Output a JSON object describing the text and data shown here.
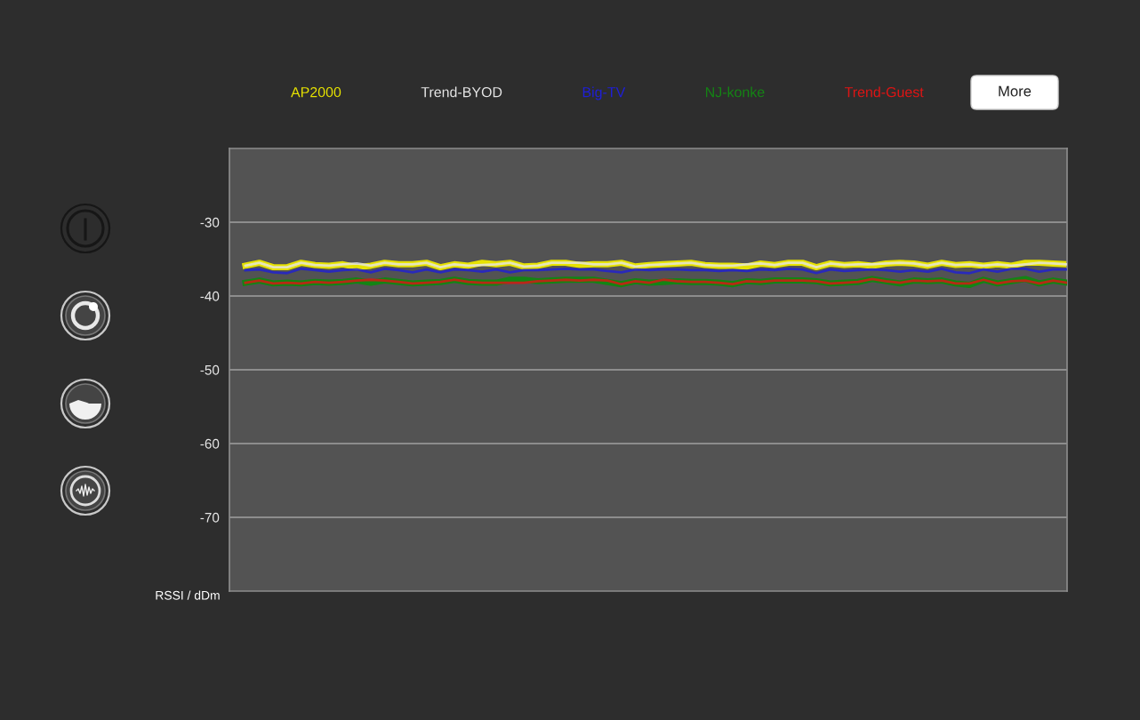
{
  "chart_data": {
    "type": "line",
    "categories": [
      null,
      null,
      null,
      null,
      null,
      null,
      null,
      null,
      null,
      null,
      null,
      null,
      null,
      null,
      null,
      null,
      null,
      null,
      null,
      null,
      null,
      null,
      null,
      null,
      null,
      null,
      null,
      null,
      null,
      null,
      null,
      null,
      null,
      null,
      null,
      null,
      null,
      null,
      null,
      null,
      null,
      null,
      null,
      null,
      null,
      null,
      null,
      null,
      null,
      null,
      null,
      null,
      null,
      null,
      null,
      null,
      null,
      null,
      null,
      null
    ],
    "ylabel": "RSSI / dDm",
    "ylim": [
      -80,
      -20
    ],
    "yticks": [
      -30,
      -40,
      -50,
      -60,
      -70
    ],
    "grid": "y",
    "legend": "top",
    "tick_labels": "y",
    "line_style": "solid",
    "annotations": [
      "More"
    ],
    "series": [
      {
        "name": "AP2000",
        "color": "#e6e200",
        "values": [
          -35.9,
          -35.5,
          -36.1,
          -36.1,
          -35.5,
          -35.8,
          -35.9,
          -35.7,
          -36.1,
          -35.9,
          -35.5,
          -35.7,
          -35.7,
          -35.5,
          -36.1,
          -35.7,
          -35.9,
          -35.5,
          -35.7,
          -35.5,
          -36.0,
          -35.9,
          -35.5,
          -35.5,
          -35.8,
          -35.7,
          -35.7,
          -35.5,
          -36.0,
          -35.8,
          -35.7,
          -35.6,
          -35.5,
          -35.8,
          -35.9,
          -35.9,
          -36.0,
          -35.6,
          -35.8,
          -35.5,
          -35.5,
          -36.1,
          -35.6,
          -35.8,
          -35.7,
          -35.9,
          -35.6,
          -35.5,
          -35.6,
          -35.9,
          -35.5,
          -35.8,
          -35.7,
          -35.9,
          -35.7,
          -35.9,
          -35.5,
          -35.5,
          -35.6,
          -35.7
        ]
      },
      {
        "name": "Trend-BYOD",
        "color": "#e6e6e6",
        "values": [
          -35.9,
          -35.5,
          -36.1,
          -36.1,
          -35.5,
          -35.8,
          -35.9,
          -35.7,
          -35.6,
          -35.9,
          -35.5,
          -35.7,
          -35.7,
          -35.5,
          -36.1,
          -35.7,
          -35.9,
          -35.8,
          -35.7,
          -35.5,
          -36.0,
          -35.9,
          -35.5,
          -35.5,
          -35.5,
          -35.7,
          -35.7,
          -35.5,
          -36.0,
          -35.8,
          -35.7,
          -35.6,
          -35.5,
          -35.8,
          -35.9,
          -35.9,
          -35.7,
          -35.6,
          -35.8,
          -35.5,
          -35.5,
          -36.1,
          -35.6,
          -35.8,
          -35.7,
          -35.7,
          -35.6,
          -35.5,
          -35.6,
          -35.9,
          -35.5,
          -35.8,
          -35.7,
          -35.9,
          -35.7,
          -35.9,
          -35.7,
          -35.5,
          -35.6,
          -35.7
        ]
      },
      {
        "name": "Big-TV",
        "color": "#1f1fd6",
        "values": [
          -36.5,
          -36.4,
          -36.8,
          -36.9,
          -36.3,
          -36.5,
          -36.7,
          -36.5,
          -36.4,
          -36.8,
          -36.3,
          -36.5,
          -36.8,
          -36.4,
          -36.8,
          -36.4,
          -36.5,
          -36.7,
          -36.4,
          -36.8,
          -36.5,
          -36.5,
          -36.4,
          -36.3,
          -36.4,
          -36.4,
          -36.6,
          -36.8,
          -36.4,
          -36.5,
          -36.4,
          -36.4,
          -36.5,
          -36.5,
          -36.6,
          -36.5,
          -36.6,
          -36.4,
          -36.5,
          -36.3,
          -36.4,
          -36.9,
          -36.4,
          -36.6,
          -36.5,
          -36.4,
          -36.5,
          -36.7,
          -36.5,
          -36.7,
          -36.3,
          -36.8,
          -36.9,
          -36.4,
          -36.7,
          -36.3,
          -36.3,
          -36.7,
          -36.4,
          -36.4
        ]
      },
      {
        "name": "NJ-konke",
        "color": "#148414",
        "values": [
          -38.2,
          -37.9,
          -38.3,
          -38.2,
          -38.3,
          -38.1,
          -38.2,
          -38.1,
          -37.9,
          -38.2,
          -37.9,
          -38.1,
          -38.3,
          -38.2,
          -38.1,
          -37.8,
          -38.1,
          -38.2,
          -38.2,
          -37.8,
          -37.8,
          -38.0,
          -37.9,
          -37.8,
          -37.8,
          -37.8,
          -38.1,
          -38.4,
          -38.0,
          -38.2,
          -38.1,
          -38.0,
          -38.1,
          -38.1,
          -38.2,
          -38.4,
          -38.0,
          -38.1,
          -37.9,
          -37.9,
          -37.9,
          -38.0,
          -38.3,
          -38.2,
          -38.1,
          -37.7,
          -38.0,
          -38.3,
          -37.9,
          -38.0,
          -37.9,
          -38.3,
          -38.5,
          -37.8,
          -38.3,
          -38.0,
          -37.7,
          -38.3,
          -37.9,
          -38.2
        ]
      },
      {
        "name": "Trend-Guest",
        "color": "#e01414",
        "values": [
          -38.2,
          -37.9,
          -38.3,
          -38.2,
          -38.3,
          -38.1,
          -38.2,
          -38.1,
          -37.9,
          -37.8,
          -37.9,
          -38.1,
          -38.3,
          -38.2,
          -38.1,
          -37.8,
          -38.1,
          -38.2,
          -38.2,
          -38.2,
          -38.2,
          -38.0,
          -37.9,
          -37.8,
          -37.9,
          -37.8,
          -37.9,
          -38.4,
          -38.0,
          -38.2,
          -37.8,
          -38.0,
          -38.1,
          -38.1,
          -38.2,
          -38.4,
          -38.0,
          -38.1,
          -37.9,
          -37.9,
          -37.9,
          -38.0,
          -38.3,
          -38.2,
          -38.1,
          -37.7,
          -38.0,
          -38.2,
          -37.9,
          -38.0,
          -37.9,
          -38.3,
          -38.3,
          -37.8,
          -38.3,
          -38.0,
          -37.9,
          -38.3,
          -37.9,
          -38.2
        ]
      }
    ]
  }
}
